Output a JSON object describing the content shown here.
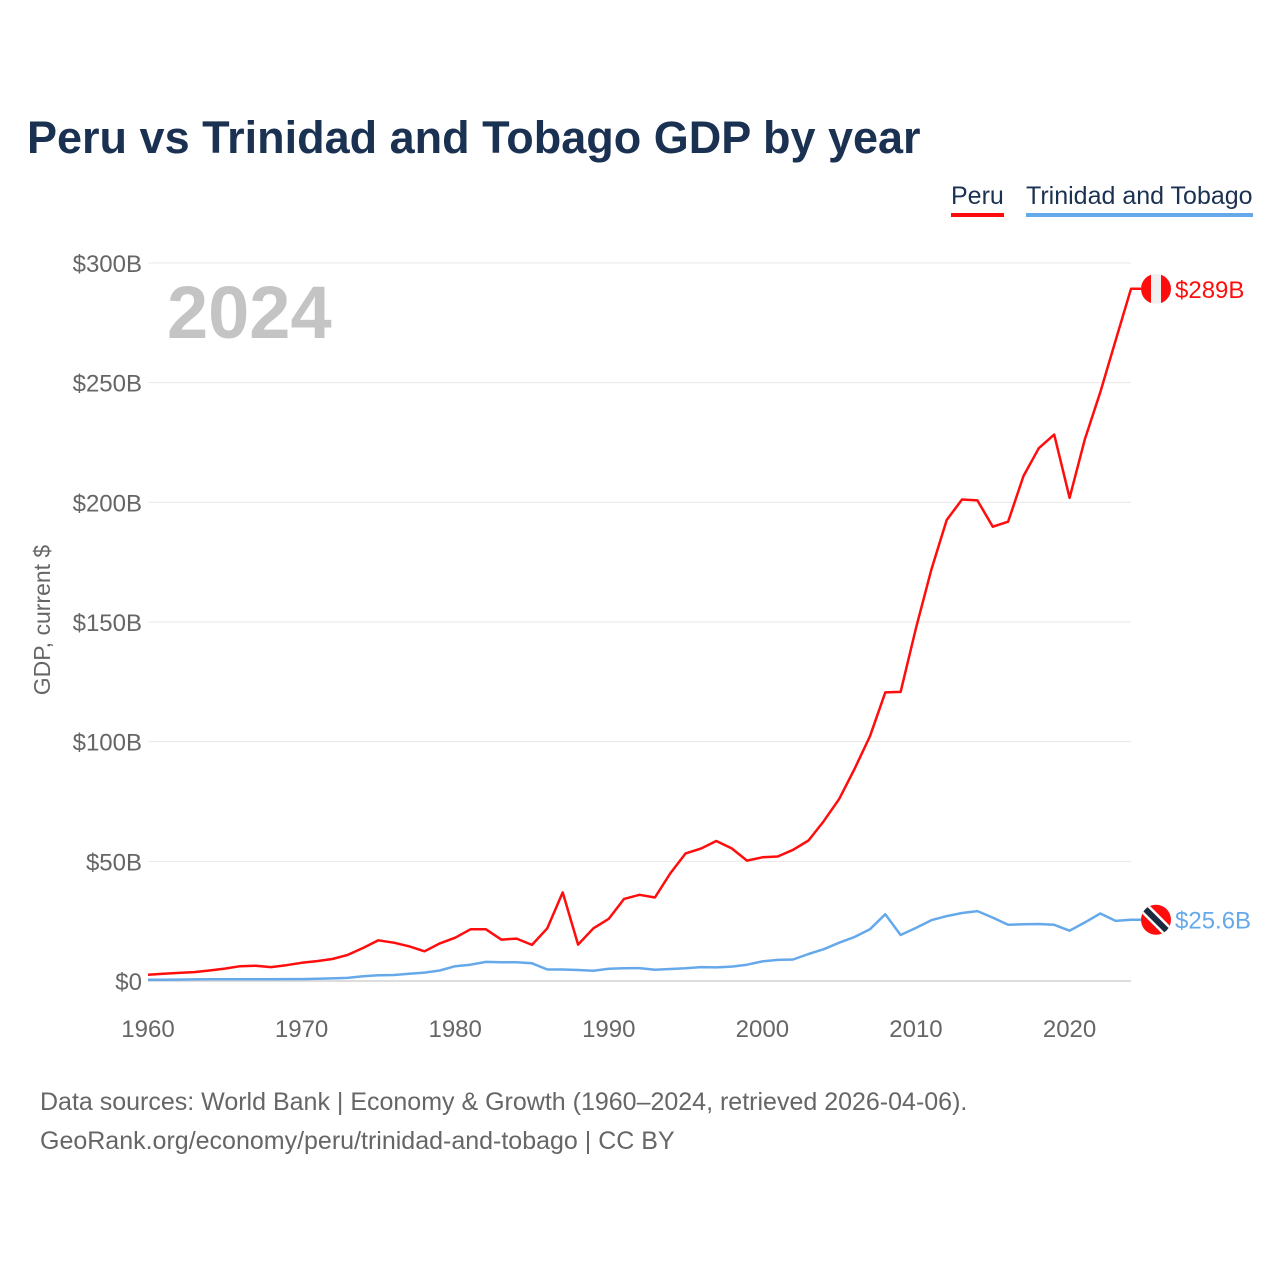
{
  "title": "Peru vs Trinidad and Tobago GDP by year",
  "source_line1": "Data sources: World Bank | Economy & Growth (1960–2024, retrieved 2026-04-06).",
  "source_line2": "GeoRank.org/economy/peru/trinidad-and-tobago | CC BY",
  "chart_data": {
    "type": "line",
    "title": "Peru vs Trinidad and Tobago GDP by year",
    "xlabel": "",
    "ylabel": "GDP, current $",
    "year_watermark": "2024",
    "xlim": [
      1960,
      2024
    ],
    "ylim": [
      0,
      300
    ],
    "x_ticks": [
      "1960",
      "1970",
      "1980",
      "1990",
      "2000",
      "2010",
      "2020"
    ],
    "y_ticks": [
      {
        "value": 0,
        "label": "$0"
      },
      {
        "value": 50,
        "label": "$50B"
      },
      {
        "value": 100,
        "label": "$100B"
      },
      {
        "value": 150,
        "label": "$150B"
      },
      {
        "value": 200,
        "label": "$200B"
      },
      {
        "value": 250,
        "label": "$250B"
      },
      {
        "value": 300,
        "label": "$300B"
      }
    ],
    "grid": true,
    "legend_position": "top-right",
    "x": [
      1960,
      1961,
      1962,
      1963,
      1964,
      1965,
      1966,
      1967,
      1968,
      1969,
      1970,
      1971,
      1972,
      1973,
      1974,
      1975,
      1976,
      1977,
      1978,
      1979,
      1980,
      1981,
      1982,
      1983,
      1984,
      1985,
      1986,
      1987,
      1988,
      1989,
      1990,
      1991,
      1992,
      1993,
      1994,
      1995,
      1996,
      1997,
      1998,
      1999,
      2000,
      2001,
      2002,
      2003,
      2004,
      2005,
      2006,
      2007,
      2008,
      2009,
      2010,
      2011,
      2012,
      2013,
      2014,
      2015,
      2016,
      2017,
      2018,
      2019,
      2020,
      2021,
      2022,
      2023,
      2024
    ],
    "series": [
      {
        "name": "Peru",
        "color": "#ff0d0d",
        "end_label": "$289B",
        "flag": "peru-flag",
        "values": [
          2.6,
          3.0,
          3.4,
          3.7,
          4.4,
          5.2,
          6.2,
          6.4,
          5.8,
          6.6,
          7.6,
          8.3,
          9.2,
          10.9,
          13.8,
          17.0,
          16.0,
          14.5,
          12.4,
          15.7,
          18.1,
          21.6,
          21.6,
          17.3,
          17.7,
          15.1,
          22.0,
          37.0,
          15.2,
          22.0,
          26.0,
          34.3,
          36.0,
          34.9,
          44.9,
          53.3,
          55.3,
          58.5,
          55.4,
          50.3,
          51.7,
          52.0,
          54.8,
          58.7,
          66.8,
          76.1,
          88.6,
          102.2,
          120.6,
          120.8,
          147.5,
          171.8,
          192.6,
          201.2,
          200.8,
          189.8,
          191.9,
          211.0,
          222.6,
          228.3,
          201.9,
          226.4,
          246.0,
          267.6,
          289.2
        ]
      },
      {
        "name": "Trinidad and Tobago",
        "color": "#66a9ea",
        "end_label": "$25.6B",
        "flag": "trinidad-flag",
        "values": [
          0.5,
          0.55,
          0.6,
          0.65,
          0.7,
          0.72,
          0.75,
          0.75,
          0.75,
          0.78,
          0.8,
          0.9,
          1.1,
          1.3,
          2.0,
          2.4,
          2.5,
          3.0,
          3.5,
          4.4,
          6.2,
          6.8,
          8.0,
          7.8,
          7.8,
          7.4,
          4.8,
          4.8,
          4.6,
          4.3,
          5.1,
          5.3,
          5.4,
          4.7,
          5.0,
          5.3,
          5.8,
          5.7,
          6.0,
          6.8,
          8.2,
          8.8,
          9.0,
          11.3,
          13.3,
          16.0,
          18.4,
          21.6,
          27.9,
          19.2,
          22.2,
          25.4,
          27.1,
          28.4,
          29.2,
          26.5,
          23.5,
          23.7,
          23.8,
          23.5,
          21.0,
          24.5,
          28.2,
          25.1,
          25.6
        ]
      }
    ]
  }
}
